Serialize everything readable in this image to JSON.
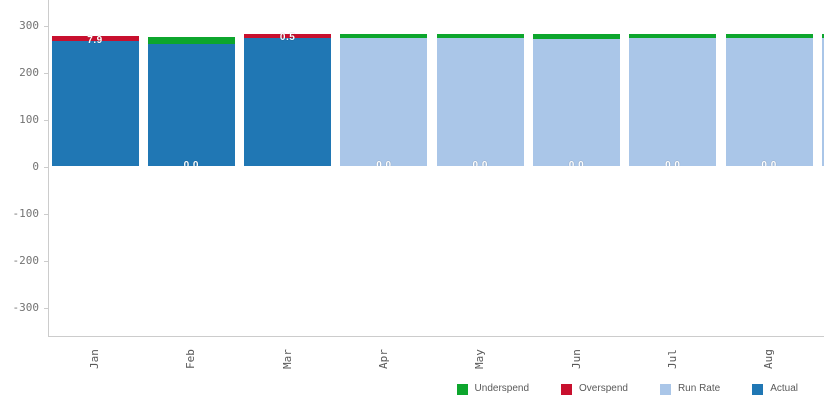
{
  "chart_data": {
    "type": "bar",
    "stacked": true,
    "title": "",
    "xlabel": "",
    "ylabel": "",
    "categories": [
      "Jan",
      "Feb",
      "Mar",
      "Apr",
      "May",
      "Jun",
      "Jul",
      "Aug"
    ],
    "series": [
      {
        "name": "Actual",
        "color": "#2077B4",
        "values": [
          268,
          260,
          273,
          0,
          0,
          0,
          0,
          0
        ]
      },
      {
        "name": "Run Rate",
        "color": "#AAC6E8",
        "values": [
          0,
          0,
          0,
          273,
          273,
          272,
          273,
          273
        ]
      },
      {
        "name": "Overspend",
        "color": "#C8102E",
        "values": [
          7.9,
          0,
          0.5,
          0,
          0,
          0,
          0,
          0
        ]
      },
      {
        "name": "Underspend",
        "color": "#0DA62D",
        "values": [
          0,
          15.5,
          0,
          8,
          8,
          8,
          8,
          8
        ]
      }
    ],
    "data_labels": [
      {
        "text": "7.9",
        "position": "top"
      },
      {
        "text": "0.0",
        "position": "bottom"
      },
      {
        "text": "0.5",
        "position": "top"
      },
      {
        "text": "0.0",
        "position": "bottom"
      },
      {
        "text": "0.0",
        "position": "bottom"
      },
      {
        "text": "0.0",
        "position": "bottom"
      },
      {
        "text": "0.0",
        "position": "bottom"
      },
      {
        "text": "0.0",
        "position": "bottom"
      }
    ],
    "partial_next_bar": {
      "main": 273,
      "strip": 8,
      "strip_color": "#0DA62D",
      "main_color": "#AAC6E8"
    },
    "y_axis": {
      "ticks": [
        300,
        200,
        100,
        0,
        -100,
        -200,
        -300
      ]
    },
    "ylim": [
      -360,
      354
    ],
    "grid": false,
    "legend_position": "bottom-right",
    "legend": [
      {
        "label": "Underspend",
        "color": "#0DA62D"
      },
      {
        "label": "Overspend",
        "color": "#C8102E"
      },
      {
        "label": "Run Rate",
        "color": "#AAC6E8"
      },
      {
        "label": "Actual",
        "color": "#2077B4"
      }
    ]
  }
}
